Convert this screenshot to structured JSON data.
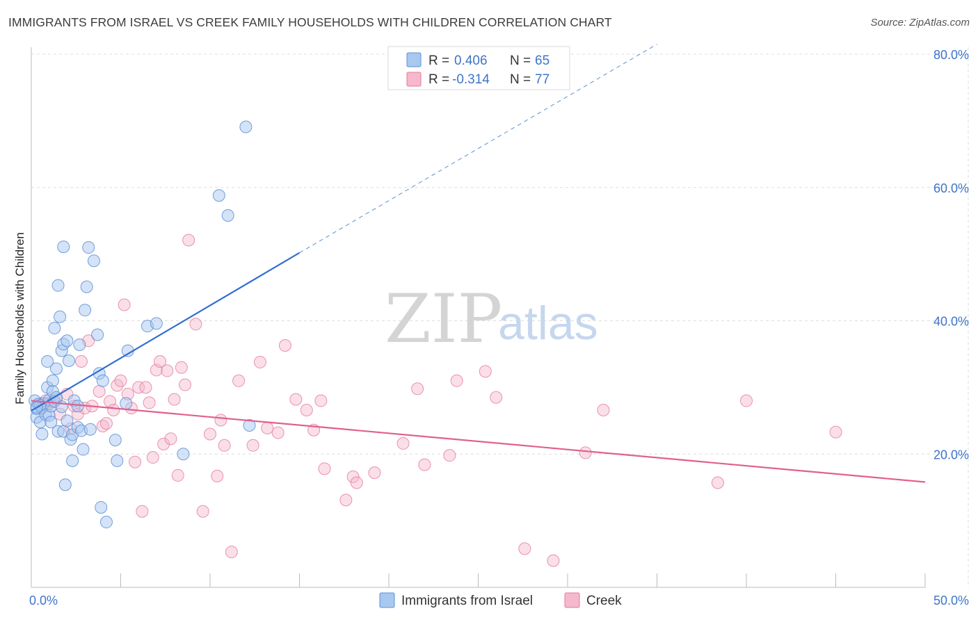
{
  "title": "IMMIGRANTS FROM ISRAEL VS CREEK FAMILY HOUSEHOLDS WITH CHILDREN CORRELATION CHART",
  "source": "Source: ZipAtlas.com",
  "watermark": {
    "zip": "ZIP",
    "atlas": "atlas"
  },
  "colors": {
    "blue_fill": "#a9c8ef",
    "blue_stroke": "#5b8fd6",
    "blue_line": "#2f6ecf",
    "pink_fill": "#f5b8cc",
    "pink_stroke": "#e4799d",
    "pink_line": "#e0608f",
    "grid": "#dddddd",
    "axis_text": "#3d74c8"
  },
  "legend": {
    "series1": {
      "r_label": "R =",
      "r_value": "0.406",
      "n_label": "N =",
      "n_value": "65"
    },
    "series2": {
      "r_label": "R =",
      "r_value": "-0.314",
      "n_label": "N =",
      "n_value": "77"
    }
  },
  "chart_data": {
    "type": "scatter",
    "title": "IMMIGRANTS FROM ISRAEL VS CREEK FAMILY HOUSEHOLDS WITH CHILDREN CORRELATION CHART",
    "xlabel": "",
    "ylabel": "Family Households with Children",
    "xlim": [
      0,
      50
    ],
    "ylim": [
      0,
      80
    ],
    "x_tick_labels": [
      "0.0%",
      "50.0%"
    ],
    "y_ticks": [
      20,
      40,
      60,
      80
    ],
    "y_tick_labels": [
      "20.0%",
      "40.0%",
      "60.0%",
      "80.0%"
    ],
    "grid": true,
    "series": [
      {
        "name": "Immigrants from Israel",
        "color": "blue",
        "r": 0.406,
        "n": 65,
        "trend": {
          "x0": 0,
          "y0": 26.5,
          "x1": 15,
          "y1": 50.2,
          "dash_to_x": 35,
          "dash_to_y": 81.5
        },
        "points": [
          [
            0.2,
            28.0
          ],
          [
            0.3,
            25.5
          ],
          [
            0.3,
            26.8
          ],
          [
            0.4,
            27.5
          ],
          [
            0.5,
            24.8
          ],
          [
            0.6,
            26.9
          ],
          [
            0.6,
            23.0
          ],
          [
            0.7,
            27.6
          ],
          [
            0.8,
            25.9
          ],
          [
            0.9,
            30.0
          ],
          [
            0.9,
            33.9
          ],
          [
            1.0,
            25.8
          ],
          [
            1.0,
            28.1
          ],
          [
            1.1,
            24.8
          ],
          [
            1.1,
            27.2
          ],
          [
            1.2,
            31.0
          ],
          [
            1.2,
            29.4
          ],
          [
            1.3,
            38.9
          ],
          [
            1.3,
            27.9
          ],
          [
            1.4,
            28.5
          ],
          [
            1.4,
            32.8
          ],
          [
            1.5,
            45.3
          ],
          [
            1.5,
            23.4
          ],
          [
            1.6,
            40.6
          ],
          [
            1.7,
            27.1
          ],
          [
            1.7,
            35.5
          ],
          [
            1.8,
            36.5
          ],
          [
            1.8,
            51.1
          ],
          [
            1.8,
            23.4
          ],
          [
            1.9,
            15.4
          ],
          [
            2.0,
            25.0
          ],
          [
            2.0,
            37.0
          ],
          [
            2.1,
            34.0
          ],
          [
            2.2,
            22.2
          ],
          [
            2.3,
            22.9
          ],
          [
            2.3,
            19.0
          ],
          [
            2.4,
            28.0
          ],
          [
            2.6,
            27.2
          ],
          [
            2.6,
            24.0
          ],
          [
            2.7,
            36.4
          ],
          [
            2.8,
            23.5
          ],
          [
            2.9,
            20.7
          ],
          [
            3.0,
            41.6
          ],
          [
            3.1,
            45.1
          ],
          [
            3.2,
            51.0
          ],
          [
            3.3,
            23.7
          ],
          [
            3.5,
            49.0
          ],
          [
            3.7,
            37.9
          ],
          [
            3.8,
            32.1
          ],
          [
            3.9,
            12.0
          ],
          [
            4.0,
            31.0
          ],
          [
            4.2,
            9.8
          ],
          [
            4.7,
            22.1
          ],
          [
            4.8,
            19.0
          ],
          [
            5.3,
            27.6
          ],
          [
            5.4,
            35.5
          ],
          [
            6.5,
            39.2
          ],
          [
            7.0,
            39.6
          ],
          [
            8.5,
            20.0
          ],
          [
            10.5,
            58.8
          ],
          [
            11.0,
            55.8
          ],
          [
            12.0,
            69.1
          ],
          [
            12.2,
            24.3
          ],
          [
            0.5,
            27.3
          ],
          [
            0.3,
            27.0
          ]
        ]
      },
      {
        "name": "Creek",
        "color": "pink",
        "r": -0.314,
        "n": 77,
        "trend": {
          "x0": 0,
          "y0": 28.0,
          "x1": 50,
          "y1": 15.8
        },
        "points": [
          [
            0.4,
            27.5
          ],
          [
            0.8,
            28.0
          ],
          [
            1.0,
            27.6
          ],
          [
            1.2,
            27.8
          ],
          [
            1.4,
            28.2
          ],
          [
            1.6,
            26.0
          ],
          [
            2.0,
            29.0
          ],
          [
            2.2,
            23.8
          ],
          [
            2.4,
            27.2
          ],
          [
            2.6,
            26.0
          ],
          [
            2.8,
            33.9
          ],
          [
            3.0,
            26.9
          ],
          [
            3.2,
            37.0
          ],
          [
            3.4,
            27.2
          ],
          [
            3.8,
            29.4
          ],
          [
            4.0,
            24.2
          ],
          [
            4.2,
            24.6
          ],
          [
            4.4,
            27.9
          ],
          [
            4.6,
            26.6
          ],
          [
            4.8,
            30.3
          ],
          [
            5.0,
            31.0
          ],
          [
            5.2,
            42.4
          ],
          [
            5.4,
            29.0
          ],
          [
            5.6,
            26.9
          ],
          [
            5.8,
            18.8
          ],
          [
            6.0,
            30.0
          ],
          [
            6.2,
            11.4
          ],
          [
            6.4,
            30.0
          ],
          [
            6.6,
            27.7
          ],
          [
            6.8,
            19.5
          ],
          [
            7.0,
            32.6
          ],
          [
            7.2,
            33.9
          ],
          [
            7.4,
            21.5
          ],
          [
            7.6,
            32.5
          ],
          [
            7.8,
            22.3
          ],
          [
            8.0,
            28.2
          ],
          [
            8.2,
            16.8
          ],
          [
            8.4,
            33.0
          ],
          [
            8.6,
            30.4
          ],
          [
            8.8,
            52.1
          ],
          [
            9.2,
            39.5
          ],
          [
            9.6,
            11.4
          ],
          [
            10.0,
            23.0
          ],
          [
            10.4,
            16.7
          ],
          [
            10.6,
            25.1
          ],
          [
            10.8,
            21.3
          ],
          [
            11.2,
            5.3
          ],
          [
            11.6,
            31.0
          ],
          [
            12.4,
            21.3
          ],
          [
            12.8,
            33.8
          ],
          [
            13.2,
            23.9
          ],
          [
            13.8,
            23.2
          ],
          [
            14.2,
            36.3
          ],
          [
            14.8,
            28.2
          ],
          [
            15.4,
            26.6
          ],
          [
            15.8,
            23.6
          ],
          [
            16.2,
            28.0
          ],
          [
            16.4,
            17.8
          ],
          [
            17.6,
            13.1
          ],
          [
            18.0,
            16.6
          ],
          [
            18.2,
            15.7
          ],
          [
            19.2,
            17.2
          ],
          [
            20.8,
            21.6
          ],
          [
            21.6,
            29.8
          ],
          [
            22.0,
            18.4
          ],
          [
            23.4,
            19.8
          ],
          [
            23.8,
            31.0
          ],
          [
            25.4,
            32.4
          ],
          [
            26.0,
            28.5
          ],
          [
            27.6,
            5.8
          ],
          [
            29.2,
            4.0
          ],
          [
            31.0,
            20.2
          ],
          [
            32.0,
            26.6
          ],
          [
            38.4,
            15.7
          ],
          [
            40.0,
            28.0
          ],
          [
            45.0,
            23.3
          ],
          [
            0.6,
            27.0
          ]
        ]
      }
    ]
  },
  "bottom_legend": {
    "series1": "Immigrants from Israel",
    "series2": "Creek"
  }
}
